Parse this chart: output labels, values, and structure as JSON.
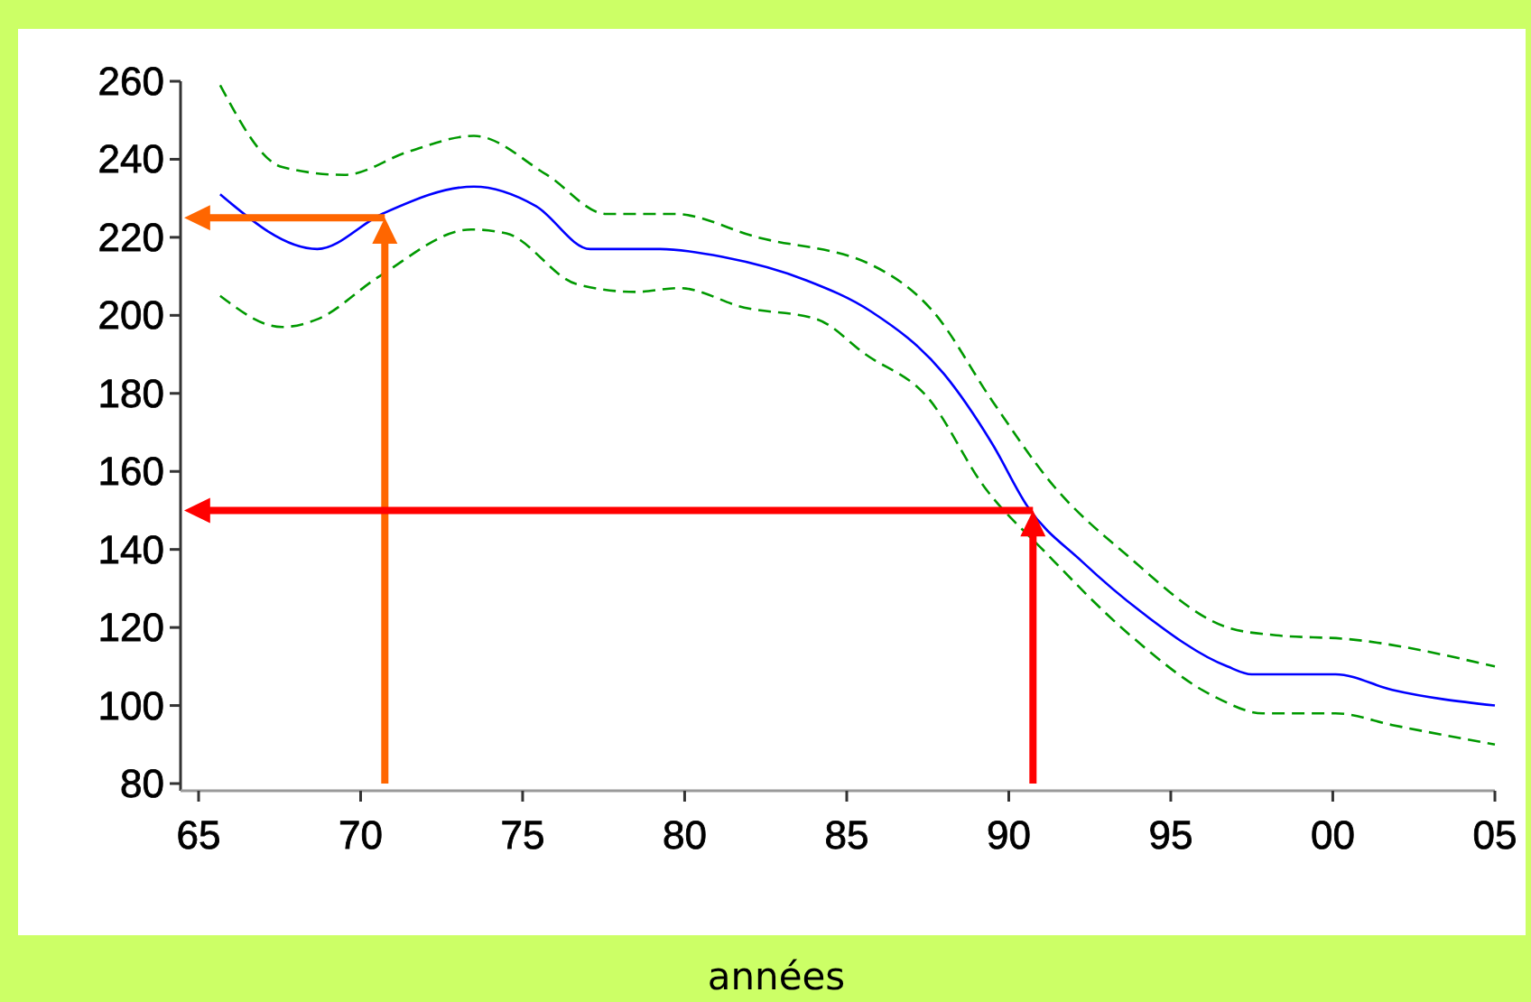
{
  "chart_data": {
    "type": "line",
    "xlabel": "années",
    "xlim": [
      "1965",
      "2005"
    ],
    "xticks": [
      {
        "value": "1965",
        "label": "65"
      },
      {
        "value": "1970",
        "label": "70"
      },
      {
        "value": "1975",
        "label": "75"
      },
      {
        "value": "1980",
        "label": "80"
      },
      {
        "value": "1985",
        "label": "85"
      },
      {
        "value": "1990",
        "label": "90"
      },
      {
        "value": "1995",
        "label": "95"
      },
      {
        "value": "2000",
        "label": "00"
      },
      {
        "value": "2005",
        "label": "05"
      }
    ],
    "ylim": [
      80,
      260
    ],
    "yticks": [
      80,
      100,
      120,
      140,
      160,
      180,
      200,
      220,
      240,
      260
    ],
    "grid": false,
    "series": [
      {
        "color": "#0000ff",
        "line_style": "solid",
        "x": [
          "1965-09",
          "1968-09",
          "1970-09",
          "1973-07",
          "1975-06",
          "1977-02",
          "1979-04",
          "1981-03",
          "1983-10",
          "1985-10",
          "1988-01",
          "1989-07",
          "1990-08",
          "1992-04",
          "1994-02",
          "1996-10",
          "1997-07",
          "2000-02",
          "2001-11",
          "2005-01"
        ],
        "values": [
          231,
          217,
          226,
          233,
          228,
          217,
          217,
          215,
          209,
          201,
          185,
          167,
          151,
          137,
          124,
          110,
          108,
          108,
          104,
          100
        ]
      },
      {
        "color": "#009900",
        "line_style": "dashed",
        "x": [
          "1965-09",
          "1967-08",
          "1969-07",
          "1971-07",
          "1973-07",
          "1975-10",
          "1977-08",
          "1979-09",
          "1982-04",
          "1985-10",
          "1987-09",
          "1989-07",
          "1991-06",
          "1993-08",
          "1996-10",
          "1998-04",
          "2000-07",
          "2005-01"
        ],
        "values": [
          259,
          238,
          236,
          242,
          246,
          236,
          226,
          226,
          220,
          213,
          201,
          178,
          156,
          139,
          120,
          118,
          117,
          110
        ]
      },
      {
        "color": "#009900",
        "line_style": "dashed",
        "x": [
          "1965-09",
          "1967-08",
          "1968-09",
          "1970-08",
          "1973-06",
          "1974-07",
          "1976-09",
          "1978-07",
          "1979-11",
          "1981-11",
          "1984-02",
          "1985-08",
          "1987-07",
          "1989-04",
          "1991-03",
          "1993-10",
          "1996-06",
          "1997-11",
          "2000-02",
          "2001-11",
          "2005-01"
        ],
        "values": [
          205,
          197,
          199,
          210,
          222,
          221,
          208,
          206,
          207,
          202,
          199,
          190,
          179,
          156,
          139,
          118,
          102,
          98,
          98,
          95,
          90
        ]
      }
    ],
    "ref_lines": [
      {
        "axis": "x",
        "value": "1970-10",
        "color": "#ff6600"
      },
      {
        "axis": "y",
        "value": 225,
        "color": "#ff6600"
      },
      {
        "axis": "x",
        "value": "1990-10",
        "color": "#ff0000"
      },
      {
        "axis": "y",
        "value": 150,
        "color": "#ff0000"
      }
    ]
  }
}
